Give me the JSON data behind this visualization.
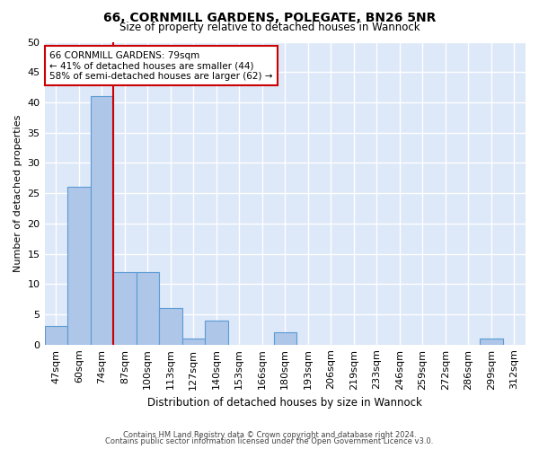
{
  "title": "66, CORNMILL GARDENS, POLEGATE, BN26 5NR",
  "subtitle": "Size of property relative to detached houses in Wannock",
  "xlabel": "Distribution of detached houses by size in Wannock",
  "ylabel": "Number of detached properties",
  "categories": [
    "47sqm",
    "60sqm",
    "74sqm",
    "87sqm",
    "100sqm",
    "113sqm",
    "127sqm",
    "140sqm",
    "153sqm",
    "166sqm",
    "180sqm",
    "193sqm",
    "206sqm",
    "219sqm",
    "233sqm",
    "246sqm",
    "259sqm",
    "272sqm",
    "286sqm",
    "299sqm",
    "312sqm"
  ],
  "values": [
    3,
    26,
    41,
    12,
    12,
    6,
    1,
    4,
    0,
    0,
    2,
    0,
    0,
    0,
    0,
    0,
    0,
    0,
    0,
    1,
    0
  ],
  "bar_color": "#aec6e8",
  "bar_edge_color": "#5b9bd5",
  "ylim": [
    0,
    50
  ],
  "yticks": [
    0,
    5,
    10,
    15,
    20,
    25,
    30,
    35,
    40,
    45,
    50
  ],
  "property_label": "66 CORNMILL GARDENS: 79sqm",
  "annotation_line1": "← 41% of detached houses are smaller (44)",
  "annotation_line2": "58% of semi-detached houses are larger (62) →",
  "annotation_box_color": "#cc0000",
  "vline_x_index": 2.5,
  "background_color": "#dde8f8",
  "grid_color": "#ffffff",
  "footer1": "Contains HM Land Registry data © Crown copyright and database right 2024.",
  "footer2": "Contains public sector information licensed under the Open Government Licence v3.0."
}
